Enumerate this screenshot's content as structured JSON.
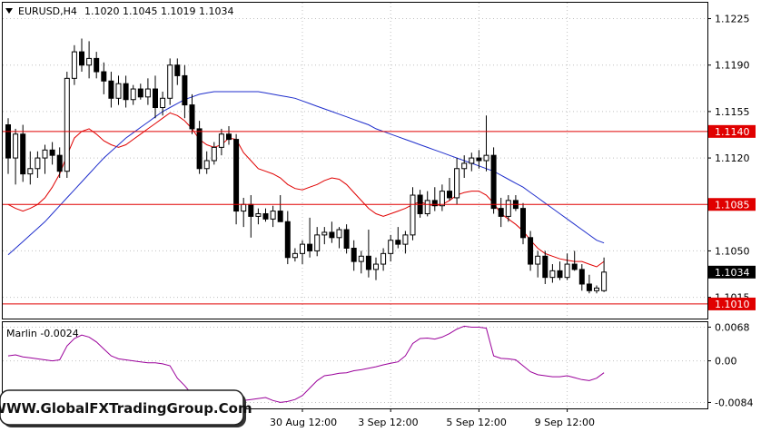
{
  "chart_data": {
    "type": "candlestick",
    "symbol": "EURUSD,H4",
    "ohlc_header": "1.1020 1.1045 1.1019 1.1034",
    "price_axis": {
      "ticks": [
        "1.1225",
        "1.1190",
        "1.1155",
        "1.1120",
        "1.1050",
        "1.1015"
      ],
      "ylim": [
        1.0999,
        1.1237
      ]
    },
    "levels": [
      {
        "value": 1.114,
        "label": "1.1140"
      },
      {
        "value": 1.1085,
        "label": "1.1085"
      },
      {
        "value": 1.101,
        "label": "1.1010"
      }
    ],
    "current_price": {
      "value": 1.1034,
      "label": "1.1034"
    },
    "time_labels": [
      {
        "label": "30 Aug 12:00",
        "index": 40
      },
      {
        "label": "3 Sep 12:00",
        "index": 52
      },
      {
        "label": "5 Sep 12:00",
        "index": 64
      },
      {
        "label": "9 Sep 12:00",
        "index": 76
      }
    ],
    "candles": [
      [
        1.1145,
        1.115,
        1.1108,
        1.112
      ],
      [
        1.112,
        1.1142,
        1.11,
        1.1138
      ],
      [
        1.1138,
        1.1145,
        1.1102,
        1.1108
      ],
      [
        1.1108,
        1.1125,
        1.11,
        1.1112
      ],
      [
        1.1112,
        1.1125,
        1.1105,
        1.112
      ],
      [
        1.112,
        1.113,
        1.1108,
        1.1126
      ],
      [
        1.1126,
        1.1132,
        1.1115,
        1.1122
      ],
      [
        1.1122,
        1.1128,
        1.1105,
        1.111
      ],
      [
        1.111,
        1.1185,
        1.1105,
        1.118
      ],
      [
        1.118,
        1.1205,
        1.1175,
        1.12
      ],
      [
        1.12,
        1.121,
        1.1185,
        1.119
      ],
      [
        1.119,
        1.1208,
        1.118,
        1.1195
      ],
      [
        1.1195,
        1.12,
        1.118,
        1.1185
      ],
      [
        1.1185,
        1.1192,
        1.1168,
        1.1178
      ],
      [
        1.1178,
        1.1185,
        1.1158,
        1.1165
      ],
      [
        1.1165,
        1.1182,
        1.116,
        1.1176
      ],
      [
        1.1176,
        1.1182,
        1.1158,
        1.1164
      ],
      [
        1.1164,
        1.1175,
        1.116,
        1.1172
      ],
      [
        1.1172,
        1.1176,
        1.1164,
        1.1166
      ],
      [
        1.1166,
        1.118,
        1.116,
        1.1172
      ],
      [
        1.1172,
        1.1182,
        1.115,
        1.1158
      ],
      [
        1.1158,
        1.117,
        1.1152,
        1.1165
      ],
      [
        1.1165,
        1.1195,
        1.116,
        1.119
      ],
      [
        1.119,
        1.1195,
        1.1175,
        1.1182
      ],
      [
        1.1182,
        1.119,
        1.115,
        1.116
      ],
      [
        1.116,
        1.1168,
        1.1138,
        1.1142
      ],
      [
        1.1142,
        1.1148,
        1.1108,
        1.1112
      ],
      [
        1.1112,
        1.1125,
        1.1108,
        1.1118
      ],
      [
        1.1118,
        1.1132,
        1.1115,
        1.1128
      ],
      [
        1.1128,
        1.1142,
        1.1122,
        1.1138
      ],
      [
        1.1138,
        1.1144,
        1.113,
        1.1134
      ],
      [
        1.1134,
        1.1138,
        1.107,
        1.108
      ],
      [
        1.108,
        1.109,
        1.1068,
        1.1085
      ],
      [
        1.1085,
        1.1092,
        1.106,
        1.1076
      ],
      [
        1.1076,
        1.1082,
        1.107,
        1.1078
      ],
      [
        1.1078,
        1.1082,
        1.1072,
        1.1074
      ],
      [
        1.1074,
        1.1084,
        1.1068,
        1.108
      ],
      [
        1.108,
        1.1092,
        1.1072,
        1.1072
      ],
      [
        1.1072,
        1.108,
        1.104,
        1.1045
      ],
      [
        1.1045,
        1.1052,
        1.1042,
        1.1048
      ],
      [
        1.1048,
        1.1058,
        1.104,
        1.1055
      ],
      [
        1.1055,
        1.1075,
        1.1045,
        1.105
      ],
      [
        1.105,
        1.1068,
        1.1046,
        1.1062
      ],
      [
        1.1062,
        1.1068,
        1.1055,
        1.1064
      ],
      [
        1.1064,
        1.1072,
        1.1056,
        1.106
      ],
      [
        1.106,
        1.1068,
        1.1052,
        1.1066
      ],
      [
        1.1066,
        1.107,
        1.1048,
        1.1052
      ],
      [
        1.1052,
        1.1058,
        1.1035,
        1.1042
      ],
      [
        1.1042,
        1.105,
        1.1033,
        1.1046
      ],
      [
        1.1046,
        1.1066,
        1.103,
        1.1036
      ],
      [
        1.1036,
        1.1045,
        1.1028,
        1.104
      ],
      [
        1.104,
        1.1052,
        1.1035,
        1.1048
      ],
      [
        1.1048,
        1.1062,
        1.1042,
        1.1058
      ],
      [
        1.1058,
        1.1068,
        1.1052,
        1.1055
      ],
      [
        1.1055,
        1.1065,
        1.1048,
        1.1062
      ],
      [
        1.1062,
        1.1098,
        1.1058,
        1.1092
      ],
      [
        1.1092,
        1.1096,
        1.1075,
        1.1078
      ],
      [
        1.1078,
        1.1095,
        1.1076,
        1.1088
      ],
      [
        1.1088,
        1.1098,
        1.108,
        1.1084
      ],
      [
        1.1084,
        1.11,
        1.108,
        1.1095
      ],
      [
        1.1095,
        1.1105,
        1.1088,
        1.109
      ],
      [
        1.109,
        1.112,
        1.1085,
        1.1112
      ],
      [
        1.1112,
        1.1122,
        1.1105,
        1.1116
      ],
      [
        1.1116,
        1.1124,
        1.111,
        1.112
      ],
      [
        1.112,
        1.1126,
        1.1112,
        1.1118
      ],
      [
        1.1118,
        1.1152,
        1.111,
        1.1122
      ],
      [
        1.1122,
        1.1128,
        1.1078,
        1.1082
      ],
      [
        1.1082,
        1.109,
        1.1068,
        1.1076
      ],
      [
        1.1076,
        1.1092,
        1.1072,
        1.1088
      ],
      [
        1.1088,
        1.1092,
        1.108,
        1.1082
      ],
      [
        1.1082,
        1.1086,
        1.1055,
        1.106
      ],
      [
        1.106,
        1.1065,
        1.1035,
        1.104
      ],
      [
        1.104,
        1.105,
        1.103,
        1.1046
      ],
      [
        1.1046,
        1.105,
        1.1025,
        1.103
      ],
      [
        1.103,
        1.104,
        1.1026,
        1.1035
      ],
      [
        1.1035,
        1.1042,
        1.1028,
        1.103
      ],
      [
        1.103,
        1.1048,
        1.1028,
        1.104
      ],
      [
        1.104,
        1.105,
        1.1035,
        1.1036
      ],
      [
        1.1036,
        1.104,
        1.102,
        1.1025
      ],
      [
        1.1025,
        1.1032,
        1.1018,
        1.102
      ],
      [
        1.102,
        1.1024,
        1.1018,
        1.1022
      ],
      [
        1.102,
        1.1045,
        1.1019,
        1.1034
      ]
    ],
    "moving_averages": [
      {
        "color": "#e00000",
        "values": [
          1.1085,
          1.1082,
          1.108,
          1.1082,
          1.1085,
          1.109,
          1.1098,
          1.1108,
          1.1122,
          1.1135,
          1.114,
          1.1142,
          1.1138,
          1.1133,
          1.113,
          1.1128,
          1.113,
          1.1134,
          1.1138,
          1.1142,
          1.1146,
          1.115,
          1.1154,
          1.1152,
          1.1148,
          1.1142,
          1.1134,
          1.113,
          1.1128,
          1.113,
          1.1135,
          1.1134,
          1.1124,
          1.1118,
          1.1112,
          1.111,
          1.1108,
          1.1105,
          1.11,
          1.1097,
          1.1096,
          1.1098,
          1.11,
          1.1103,
          1.1105,
          1.1104,
          1.11,
          1.1094,
          1.1088,
          1.1082,
          1.1078,
          1.1076,
          1.1078,
          1.108,
          1.1082,
          1.1085,
          1.1087,
          1.1085,
          1.1084,
          1.1085,
          1.1088,
          1.1092,
          1.1094,
          1.1095,
          1.1095,
          1.1092,
          1.1086,
          1.1078,
          1.1074,
          1.107,
          1.1065,
          1.1058,
          1.1052,
          1.1048,
          1.1046,
          1.1044,
          1.1043,
          1.1042,
          1.1042,
          1.104,
          1.1038,
          1.1042
        ]
      },
      {
        "color": "#1f2ecc",
        "values": [
          1.1047,
          1.1052,
          1.1057,
          1.1062,
          1.1067,
          1.1072,
          1.1078,
          1.1084,
          1.109,
          1.1096,
          1.1102,
          1.1108,
          1.1114,
          1.112,
          1.1125,
          1.113,
          1.1135,
          1.1139,
          1.1143,
          1.1147,
          1.1151,
          1.1155,
          1.1158,
          1.1161,
          1.1164,
          1.1166,
          1.1168,
          1.1169,
          1.117,
          1.117,
          1.117,
          1.117,
          1.117,
          1.117,
          1.117,
          1.1169,
          1.1168,
          1.1167,
          1.1166,
          1.1165,
          1.1163,
          1.1161,
          1.1159,
          1.1157,
          1.1155,
          1.1153,
          1.1151,
          1.1149,
          1.1147,
          1.1145,
          1.1142,
          1.114,
          1.1138,
          1.1136,
          1.1134,
          1.1132,
          1.113,
          1.1128,
          1.1126,
          1.1124,
          1.1122,
          1.112,
          1.1118,
          1.1116,
          1.1114,
          1.1112,
          1.111,
          1.1107,
          1.1104,
          1.1101,
          1.1098,
          1.1094,
          1.109,
          1.1086,
          1.1082,
          1.1078,
          1.1074,
          1.107,
          1.1066,
          1.1062,
          1.1058,
          1.1056
        ]
      }
    ],
    "indicator": {
      "label": "Marlin -0.0024",
      "ticks": [
        "0.0068",
        "0.00",
        "-0.0084"
      ],
      "ylim": [
        -0.0096,
        0.0078
      ],
      "values": [
        0.001,
        0.0012,
        0.0008,
        0.0006,
        0.0004,
        0.0002,
        0.0,
        0.0002,
        0.003,
        0.0045,
        0.0052,
        0.0048,
        0.0038,
        0.0024,
        0.001,
        0.0004,
        0.0002,
        0.0,
        -0.0002,
        -0.0004,
        -0.0004,
        -0.0006,
        -0.001,
        -0.0035,
        -0.005,
        -0.0068,
        -0.0085,
        -0.009,
        -0.0088,
        -0.0086,
        -0.0084,
        -0.0082,
        -0.008,
        -0.0078,
        -0.0076,
        -0.0074,
        -0.008,
        -0.0084,
        -0.0082,
        -0.0078,
        -0.007,
        -0.0055,
        -0.004,
        -0.003,
        -0.0028,
        -0.0025,
        -0.0024,
        -0.002,
        -0.0018,
        -0.0015,
        -0.0012,
        -0.0008,
        -0.0005,
        -0.0002,
        0.001,
        0.0035,
        0.0045,
        0.0046,
        0.0044,
        0.0048,
        0.0055,
        0.0064,
        0.007,
        0.0068,
        0.0068,
        0.0066,
        0.001,
        0.0005,
        0.0004,
        0.0002,
        -0.001,
        -0.0022,
        -0.0028,
        -0.003,
        -0.0032,
        -0.0032,
        -0.003,
        -0.0034,
        -0.0038,
        -0.004,
        -0.0035,
        -0.0024
      ]
    }
  },
  "watermark": "WWW.GlobalFXTradingGroup.Com",
  "colors": {
    "background": "#ffffff",
    "grid": "#c0c0c0",
    "level": "#e00000",
    "indicator": "#9a009a",
    "bull": "#ffffff",
    "bear": "#000000"
  }
}
